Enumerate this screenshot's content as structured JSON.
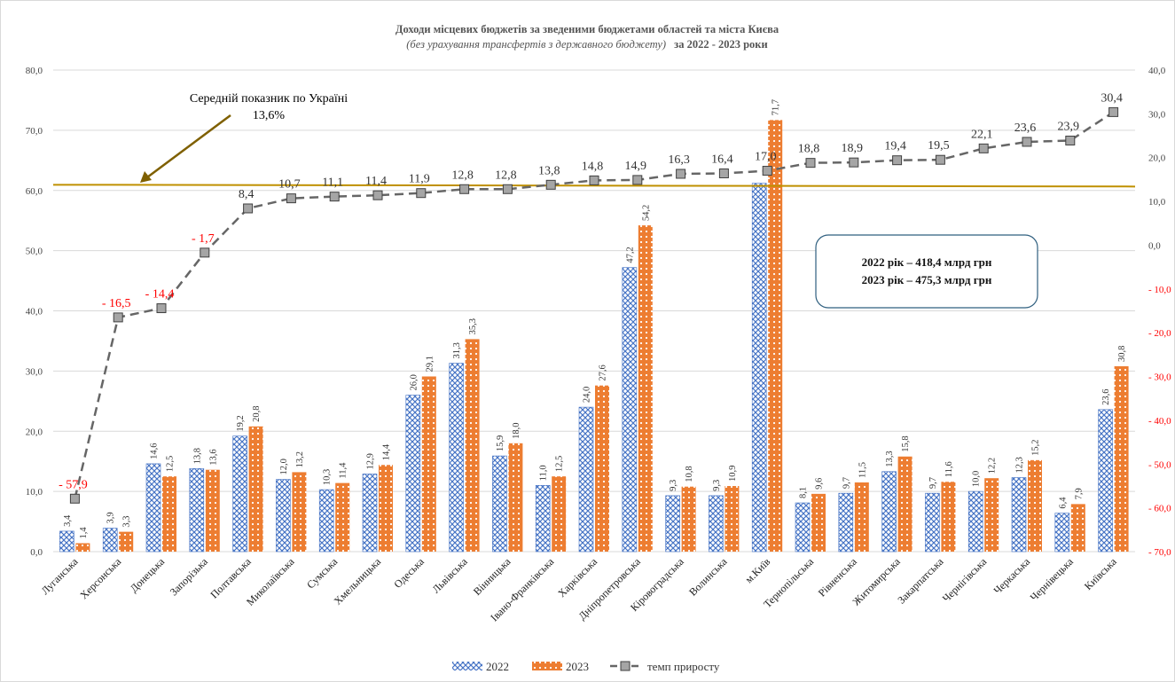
{
  "chart_data": {
    "type": "bar",
    "title": "Доходи місцевих бюджетів за зведеними бюджетами областей та міста Києва",
    "subtitle_italic": "(без урахування трансфертів з державного бюджету)",
    "subtitle_bold": "за 2022 - 2023 роки",
    "categories": [
      "Луганська",
      "Херсонська",
      "Донецька",
      "Запорізька",
      "Полтавська",
      "Миколаївська",
      "Сумська",
      "Хмельницька",
      "Одеська",
      "Львівська",
      "Вінницька",
      "Івано-Франківська",
      "Харківська",
      "Дніпропетровська",
      "Кіровоградська",
      "Волинська",
      "м.Київ",
      "Тернопільська",
      "Рівненська",
      "Житомирська",
      "Закарпатська",
      "Чернігівська",
      "Черкаська",
      "Чернівецька",
      "Київська"
    ],
    "series": [
      {
        "name": "2022",
        "values": [
          3.4,
          3.9,
          14.6,
          13.8,
          19.2,
          12.0,
          10.3,
          12.9,
          26.0,
          31.3,
          15.9,
          11.0,
          24.0,
          47.2,
          9.3,
          9.3,
          61.2,
          8.1,
          9.7,
          13.3,
          9.7,
          10.0,
          12.3,
          6.4,
          23.6
        ],
        "labels": [
          "3,4",
          "3,9",
          "14,6",
          "13,8",
          "19,2",
          "12,0",
          "10,3",
          "12,9",
          "26,0",
          "31,3",
          "15,9",
          "11,0",
          "24,0",
          "47,2",
          "9,3",
          "9,3",
          "",
          "8,1",
          "9,7",
          "13,3",
          "9,7",
          "10,0",
          "12,3",
          "6,4",
          "23,6"
        ]
      },
      {
        "name": "2023",
        "values": [
          1.4,
          3.3,
          12.5,
          13.6,
          20.8,
          13.2,
          11.4,
          14.4,
          29.1,
          35.3,
          18.0,
          12.5,
          27.6,
          54.2,
          10.8,
          10.9,
          71.7,
          9.6,
          11.5,
          15.8,
          11.6,
          12.2,
          15.2,
          7.9,
          30.8
        ],
        "labels": [
          "1,4",
          "3,3",
          "12,5",
          "13,6",
          "20,8",
          "13,2",
          "11,4",
          "14,4",
          "29,1",
          "35,3",
          "18,0",
          "12,5",
          "27,6",
          "54,2",
          "10,8",
          "10,9",
          "71,7",
          "9,6",
          "11,5",
          "15,8",
          "11,6",
          "12,2",
          "15,2",
          "7,9",
          "30,8"
        ]
      },
      {
        "name": "темп приросту",
        "axis": "right",
        "values": [
          -57.9,
          -16.5,
          -14.4,
          -1.7,
          8.4,
          10.7,
          11.1,
          11.4,
          11.9,
          12.8,
          12.8,
          13.8,
          14.8,
          14.9,
          16.3,
          16.4,
          17.0,
          18.8,
          18.9,
          19.4,
          19.5,
          22.1,
          23.6,
          23.9,
          30.4
        ],
        "labels": [
          "- 57,9",
          "- 16,5",
          "- 14,4",
          "- 1,7",
          "8,4",
          "10,7",
          "11,1",
          "11,4",
          "11,9",
          "12,8",
          "12,8",
          "13,8",
          "14,8",
          "14,9",
          "16,3",
          "16,4",
          "17,0",
          "18,8",
          "18,9",
          "19,4",
          "19,5",
          "22,1",
          "23,6",
          "23,9",
          "30,4"
        ]
      }
    ],
    "ylim_left": [
      0,
      80
    ],
    "ylim_right": [
      -70,
      40
    ],
    "yticks_left": [
      "0,0",
      "10,0",
      "20,0",
      "30,0",
      "40,0",
      "50,0",
      "60,0",
      "70,0",
      "80,0"
    ],
    "yticks_right": [
      "40,0",
      "30,0",
      "20,0",
      "10,0",
      "0,0",
      "- 10,0",
      "- 20,0",
      "- 30,0",
      "- 40,0",
      "- 50,0",
      "- 60,0",
      "- 70,0"
    ],
    "average_line": {
      "value": 13.6,
      "axis": "right"
    },
    "annotation": {
      "line1": "Середній показник по Україні",
      "line2": "13,6%"
    },
    "info_box": {
      "line1": "2022 рік – 418,4 млрд грн",
      "line2": "2023 рік – 475,3 млрд грн"
    },
    "legend": {
      "position": "bottom",
      "items": [
        "2022",
        "2023",
        "темп приросту"
      ]
    },
    "colors": {
      "series2022": "#4472c4",
      "series2023": "#ed7d31",
      "growth": "#666666",
      "growth_marker": "#a5a5a5",
      "average": "#bf9000",
      "negative": "#ff0000",
      "box_border": "#2f5f7f"
    }
  }
}
